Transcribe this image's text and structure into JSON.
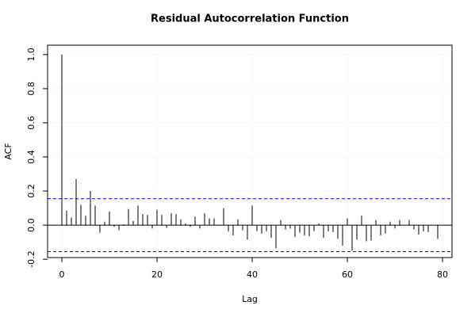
{
  "chart_data": {
    "type": "acf",
    "title": "Residual Autocorrelation Function",
    "x_label": "Lag",
    "y_label": "ACF",
    "x": [
      0,
      1,
      2,
      3,
      4,
      5,
      6,
      7,
      8,
      9,
      10,
      11,
      12,
      13,
      14,
      15,
      16,
      17,
      18,
      19,
      20,
      21,
      22,
      23,
      24,
      25,
      26,
      27,
      28,
      29,
      30,
      31,
      32,
      33,
      34,
      35,
      36,
      37,
      38,
      39,
      40,
      41,
      42,
      43,
      44,
      45,
      46,
      47,
      48,
      49,
      50,
      51,
      52,
      53,
      54,
      55,
      56,
      57,
      58,
      59,
      60,
      61,
      62,
      63,
      64,
      65,
      66,
      67,
      68,
      69,
      70,
      71,
      72,
      73,
      74,
      75,
      76,
      77,
      78,
      79
    ],
    "values": [
      1.0,
      0.085,
      0.045,
      0.27,
      0.12,
      0.055,
      0.2,
      0.115,
      -0.045,
      0.02,
      0.08,
      -0.01,
      -0.03,
      0.005,
      0.095,
      0.025,
      0.115,
      0.065,
      0.06,
      -0.02,
      0.09,
      0.06,
      -0.015,
      0.07,
      0.065,
      0.035,
      0.01,
      -0.01,
      0.05,
      -0.02,
      0.07,
      0.04,
      0.04,
      0.0,
      0.1,
      -0.035,
      -0.06,
      0.035,
      -0.03,
      -0.085,
      0.115,
      -0.035,
      -0.05,
      -0.035,
      -0.075,
      -0.135,
      0.03,
      -0.025,
      -0.02,
      -0.07,
      -0.045,
      -0.06,
      -0.065,
      -0.035,
      0.01,
      -0.075,
      -0.035,
      -0.04,
      -0.08,
      -0.12,
      0.04,
      -0.15,
      -0.085,
      0.055,
      -0.095,
      -0.09,
      0.03,
      -0.06,
      -0.05,
      0.02,
      -0.02,
      0.03,
      0.0,
      0.03,
      -0.025,
      -0.055,
      -0.035,
      -0.04,
      0.0,
      -0.08
    ],
    "color": "#000000",
    "confidence_bounds": [
      0.155,
      -0.155
    ],
    "confidence_color": "#0000ff",
    "xlim": [
      -3,
      82
    ],
    "ylim": [
      -0.19,
      1.055
    ],
    "xticks": [
      0,
      20,
      40,
      60,
      80
    ],
    "yticks": [
      {
        "value": -0.2,
        "label": "-0.2"
      },
      {
        "value": 0,
        "label": "0.0"
      },
      {
        "value": 0.2,
        "label": "0.2"
      },
      {
        "value": 0.4,
        "label": "0.4"
      },
      {
        "value": 0.6,
        "label": "0.6"
      },
      {
        "value": 0.8,
        "label": "0.8"
      },
      {
        "value": 1,
        "label": "1.0"
      }
    ],
    "grid": true
  }
}
